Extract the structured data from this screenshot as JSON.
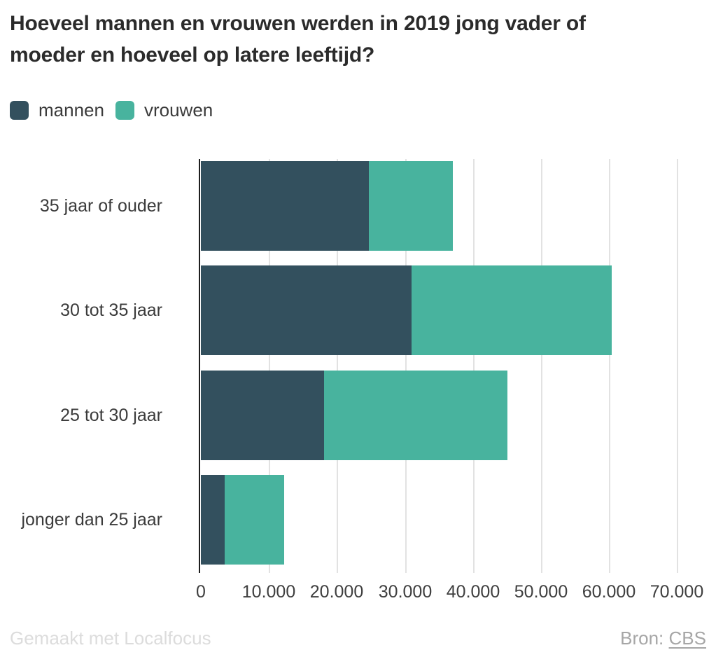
{
  "title": "Hoeveel mannen en vrouwen werden in 2019 jong vader of moeder en hoeveel op latere leeftijd?",
  "legend": [
    {
      "label": "mannen",
      "color": "#33505e"
    },
    {
      "label": "vrouwen",
      "color": "#48b39e"
    }
  ],
  "chart_data": {
    "type": "bar",
    "orientation": "horizontal",
    "stacked": true,
    "title": "Hoeveel mannen en vrouwen werden in 2019 jong vader of moeder en hoeveel op latere leeftijd?",
    "categories": [
      "35 jaar of ouder",
      "30 tot 35 jaar",
      "25 tot 30 jaar",
      "jonger dan 25 jaar"
    ],
    "series": [
      {
        "name": "mannen",
        "color": "#33505e",
        "values": [
          24700,
          31000,
          18100,
          3500
        ]
      },
      {
        "name": "vrouwen",
        "color": "#48b39e",
        "values": [
          12300,
          29400,
          27000,
          8700
        ]
      }
    ],
    "x_ticks": [
      {
        "value": 0,
        "label": "0"
      },
      {
        "value": 10000,
        "label": "10.000"
      },
      {
        "value": 20000,
        "label": "20.000"
      },
      {
        "value": 30000,
        "label": "30.000"
      },
      {
        "value": 40000,
        "label": "40.000"
      },
      {
        "value": 50000,
        "label": "50.000"
      },
      {
        "value": 60000,
        "label": "60.000"
      },
      {
        "value": 70000,
        "label": "70.000"
      }
    ],
    "xlim": [
      0,
      75000
    ],
    "grid": "vertical",
    "legend_position": "top-left"
  },
  "footer": {
    "credit": "Gemaakt met Localfocus",
    "source_label": "Bron:",
    "source_link": "CBS"
  }
}
